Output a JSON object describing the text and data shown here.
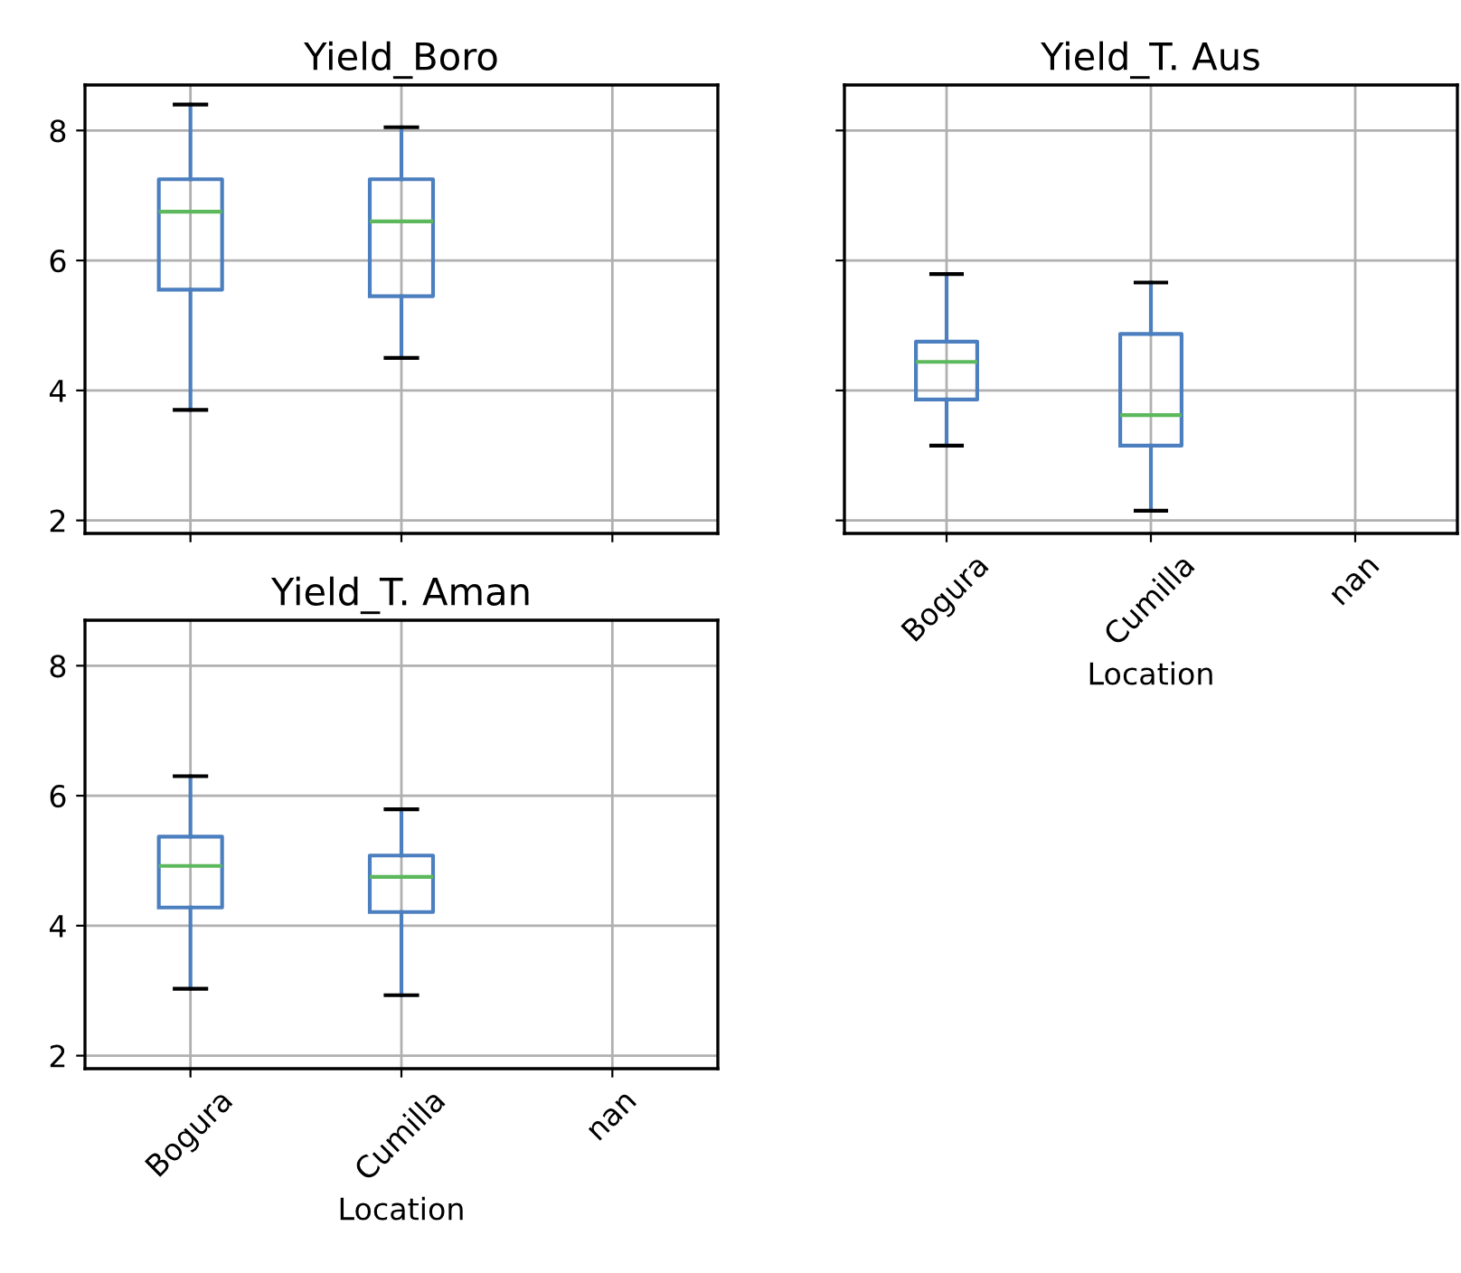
{
  "chart_data": [
    {
      "type": "box",
      "title": "Yield_Boro",
      "categories": [
        null,
        null,
        null
      ],
      "ylim": [
        1.8,
        8.7
      ],
      "yticks": [
        2,
        4,
        6,
        8
      ],
      "grid": true,
      "tick_labels": "y",
      "color": "#4c7fbf",
      "boxes": [
        {
          "low": 3.7,
          "q1": 5.55,
          "median": 6.75,
          "q3": 7.25,
          "high": 8.4
        },
        {
          "low": 4.5,
          "q1": 5.45,
          "median": 6.6,
          "q3": 7.25,
          "high": 8.05
        },
        null
      ]
    },
    {
      "type": "box",
      "title": "Yield_T. Aus",
      "xlabel": "Location",
      "categories": [
        "Bogura",
        "Cumilla",
        "nan"
      ],
      "ylim": [
        1.8,
        8.7
      ],
      "yticks": [
        {
          "value": 2,
          "label": null
        },
        {
          "value": 4,
          "label": null
        },
        {
          "value": 6,
          "label": null
        },
        {
          "value": 8,
          "label": null
        }
      ],
      "grid": true,
      "tick_labels": "x",
      "color": "#4c7fbf",
      "boxes": [
        {
          "low": 3.15,
          "q1": 3.86,
          "median": 4.44,
          "q3": 4.75,
          "high": 5.79
        },
        {
          "low": 2.15,
          "q1": 3.15,
          "median": 3.62,
          "q3": 4.87,
          "high": 5.66
        },
        null
      ]
    },
    {
      "type": "box",
      "title": "Yield_T. Aman",
      "xlabel": "Location",
      "categories": [
        "Bogura",
        "Cumilla",
        "nan"
      ],
      "ylim": [
        1.8,
        8.7
      ],
      "yticks": [
        2,
        4,
        6,
        8
      ],
      "grid": true,
      "color": "#4c7fbf",
      "boxes": [
        {
          "low": 3.03,
          "q1": 4.28,
          "median": 4.92,
          "q3": 5.37,
          "high": 6.3
        },
        {
          "low": 2.93,
          "q1": 4.21,
          "median": 4.75,
          "q3": 5.08,
          "high": 5.79
        },
        null
      ]
    }
  ]
}
